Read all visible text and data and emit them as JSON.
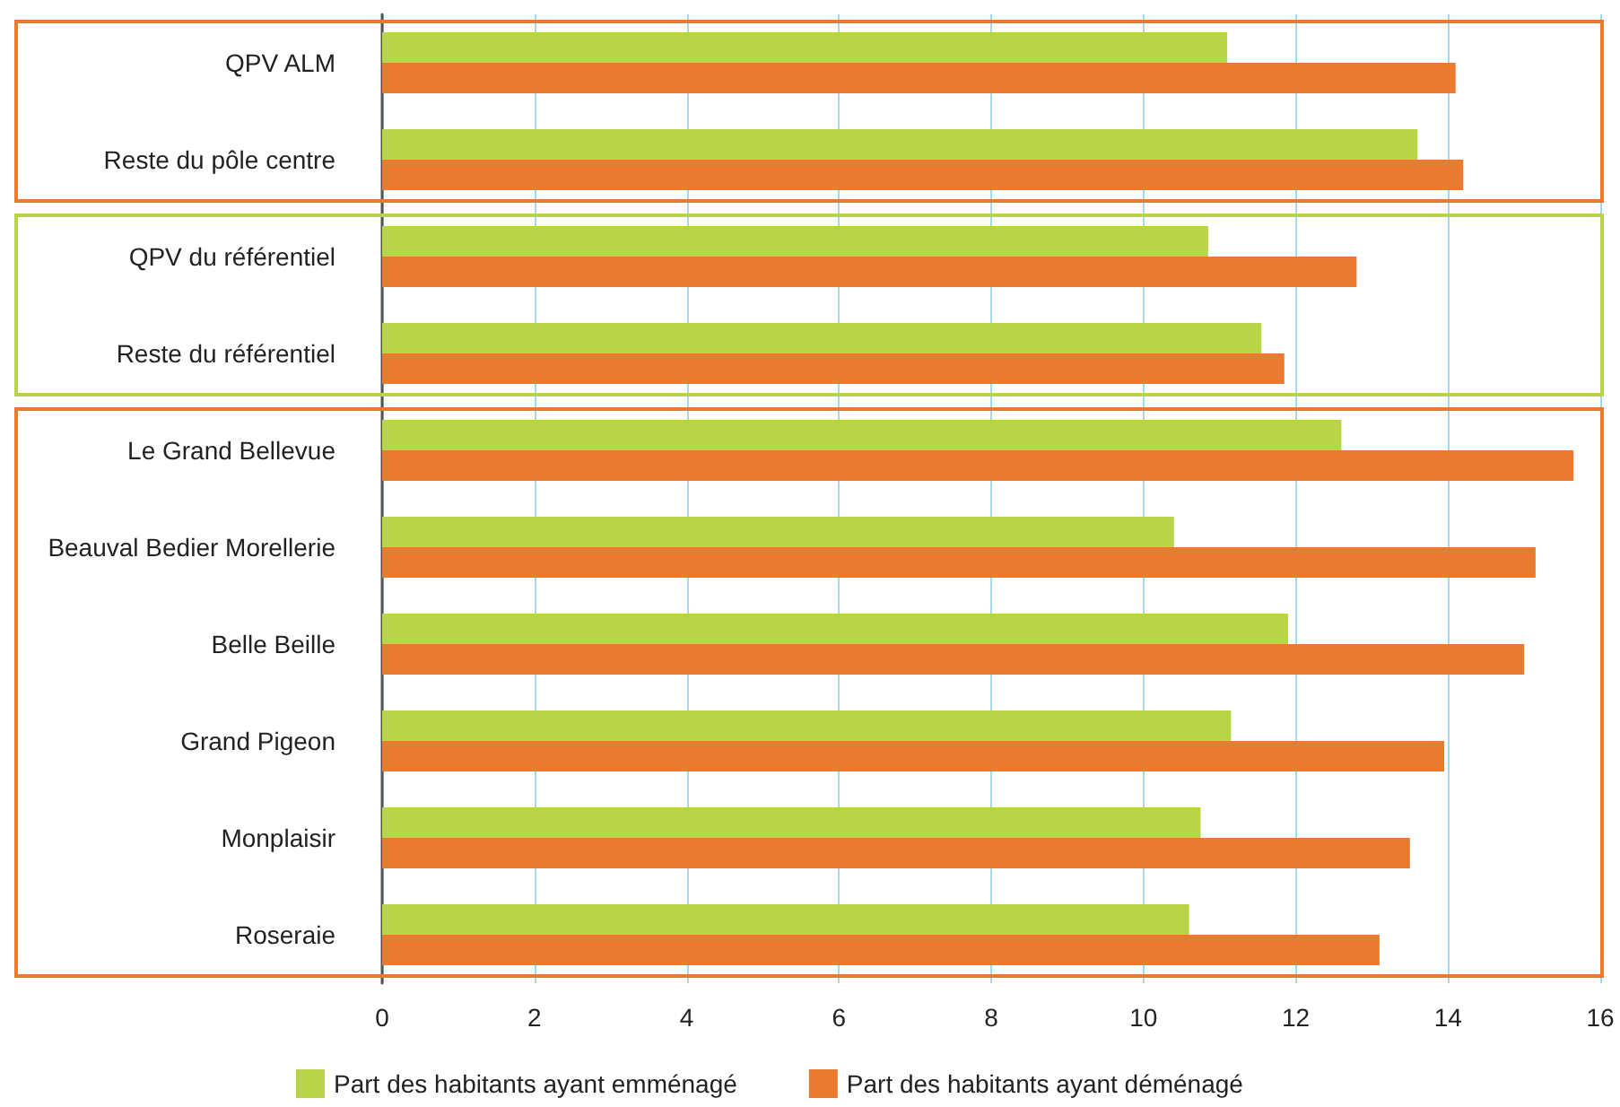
{
  "chart_data": {
    "type": "bar",
    "orientation": "horizontal",
    "categories": [
      "QPV ALM",
      "Reste du pôle centre",
      "QPV du référentiel",
      "Reste du référentiel",
      "Le Grand Bellevue",
      "Beauval Bedier Morellerie",
      "Belle Beille",
      "Grand Pigeon",
      "Monplaisir",
      "Roseraie"
    ],
    "series": [
      {
        "name": "Part des habitants ayant emménagé",
        "color": "#b9d447",
        "values": [
          11.1,
          13.6,
          10.85,
          11.55,
          12.6,
          10.4,
          11.9,
          11.15,
          10.75,
          10.6
        ]
      },
      {
        "name": "Part des habitants ayant déménagé",
        "color": "#e97a2f",
        "values": [
          14.1,
          14.2,
          12.8,
          11.85,
          15.65,
          15.15,
          15.0,
          13.95,
          13.5,
          13.1
        ]
      }
    ],
    "xlim": [
      0,
      16
    ],
    "xticks": [
      0,
      2,
      4,
      6,
      8,
      10,
      12,
      14,
      16
    ],
    "grid": "x",
    "legend": "bottom"
  }
}
